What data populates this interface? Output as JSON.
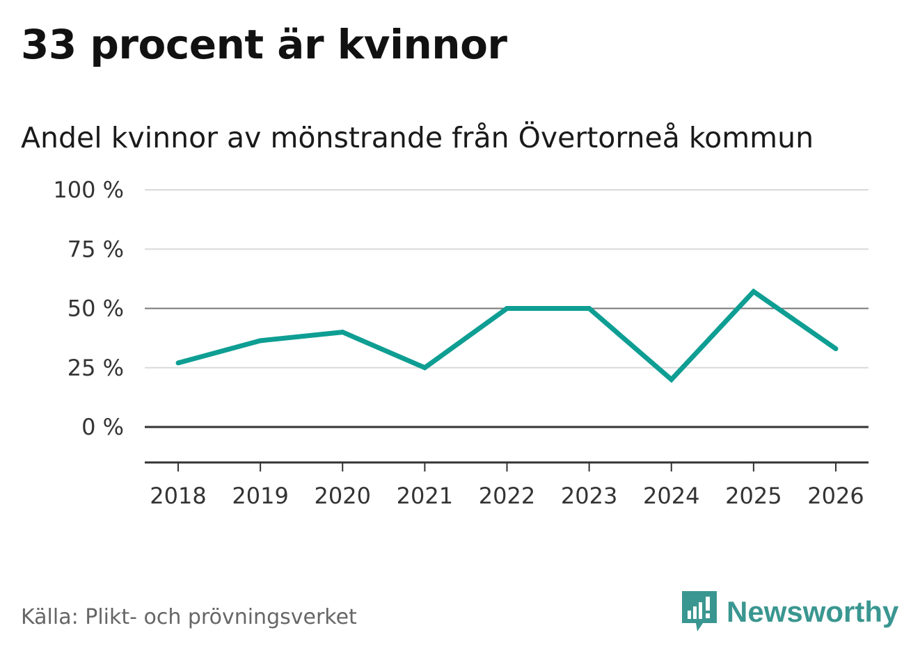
{
  "header": {
    "title": "33 procent är kvinnor",
    "subtitle": "Andel kvinnor av mönstrande från Övertorneå kommun"
  },
  "footer": {
    "source": "Källa: Plikt- och prövningsverket",
    "brand": "Newsworthy",
    "brand_icon": "newsworthy-logo-icon",
    "brand_color": "#3a9690"
  },
  "chart_data": {
    "type": "line",
    "title": "33 procent är kvinnor",
    "subtitle": "Andel kvinnor av mönstrande från Övertorneå kommun",
    "xlabel": "",
    "ylabel": "",
    "categories": [
      "2018",
      "2019",
      "2020",
      "2021",
      "2022",
      "2023",
      "2024",
      "2025",
      "2026"
    ],
    "series": [
      {
        "name": "Andel kvinnor",
        "values": [
          27,
          36.4,
          40,
          25,
          50,
          50,
          20,
          57.1,
          33
        ],
        "color": "#0e9e93"
      }
    ],
    "ylim": [
      -15,
      100
    ],
    "yticks": [
      0,
      25,
      50,
      75,
      100
    ],
    "ytick_labels": [
      "0 %",
      "25 %",
      "50 %",
      "75 %",
      "100 %"
    ],
    "grid": true,
    "reference_lines": [
      0,
      50
    ],
    "legend": "none"
  }
}
